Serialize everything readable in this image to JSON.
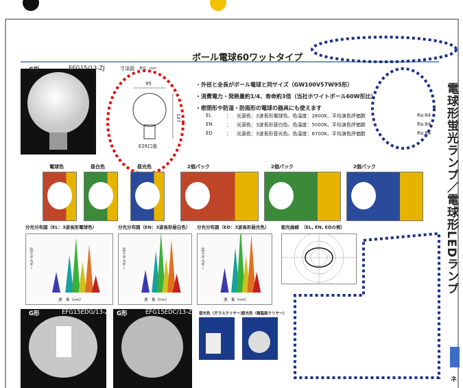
{
  "header": {
    "title": "ボール電球60ワットタイプ"
  },
  "product": {
    "shape": "G形",
    "model": "EFG15/13-ZJ",
    "diagram_title": "寸法図",
    "unit": "単位：mm",
    "width": "95",
    "height": "127",
    "base": "E26口金"
  },
  "features": [
    "・外径と全長がボール電球と同サイズ（GW100V57W95形）",
    "・消費電力・発熱量約1/4、寿命約3倍（当社ホワイトボール60W形比）",
    "・密閉形や防湿・防雨形の電球の器具にも使えます"
  ],
  "specs": [
    [
      "EL",
      "：",
      "光源色：3波長形電球色、色温度：2800K、平均演色評価数",
      "Ra:84"
    ],
    [
      "EN",
      "：",
      "光源色：3波長形昼白色、色温度：5000K、平均演色評価数",
      "Ra:84"
    ],
    [
      "ED",
      "：",
      "光源色：3波長形昼光色、色温度：6700K、平均演色評価数",
      "Ra:84"
    ]
  ],
  "packages": [
    "電球色",
    "昼白色",
    "昼光色",
    "2個パック",
    "2個パック",
    "2個パック"
  ],
  "graphs": {
    "titles": [
      "分光分布図（EL：3波長形電球色）",
      "分光分布図（EN：3波長形昼白色）",
      "分光分布図（ED：3波長形昼光色）",
      "配光曲線　（EL, EN, EDの例）"
    ],
    "x_label": "波　長（nm）",
    "y_label": "比エネルギー"
  },
  "bottom": [
    {
      "shape": "G形",
      "model": "EFG15EDG/13-ZJ"
    },
    {
      "shape": "G形",
      "model": "EFG15EDC/13-ZJ"
    }
  ],
  "bottom_labels": [
    "昼光色（ガラスクリヤー）",
    "昼光色（樹脂面クリヤー）"
  ],
  "sidebar": {
    "title": "電球形蛍光ランプ／電球形LEDランプ",
    "tab": "ネ"
  }
}
